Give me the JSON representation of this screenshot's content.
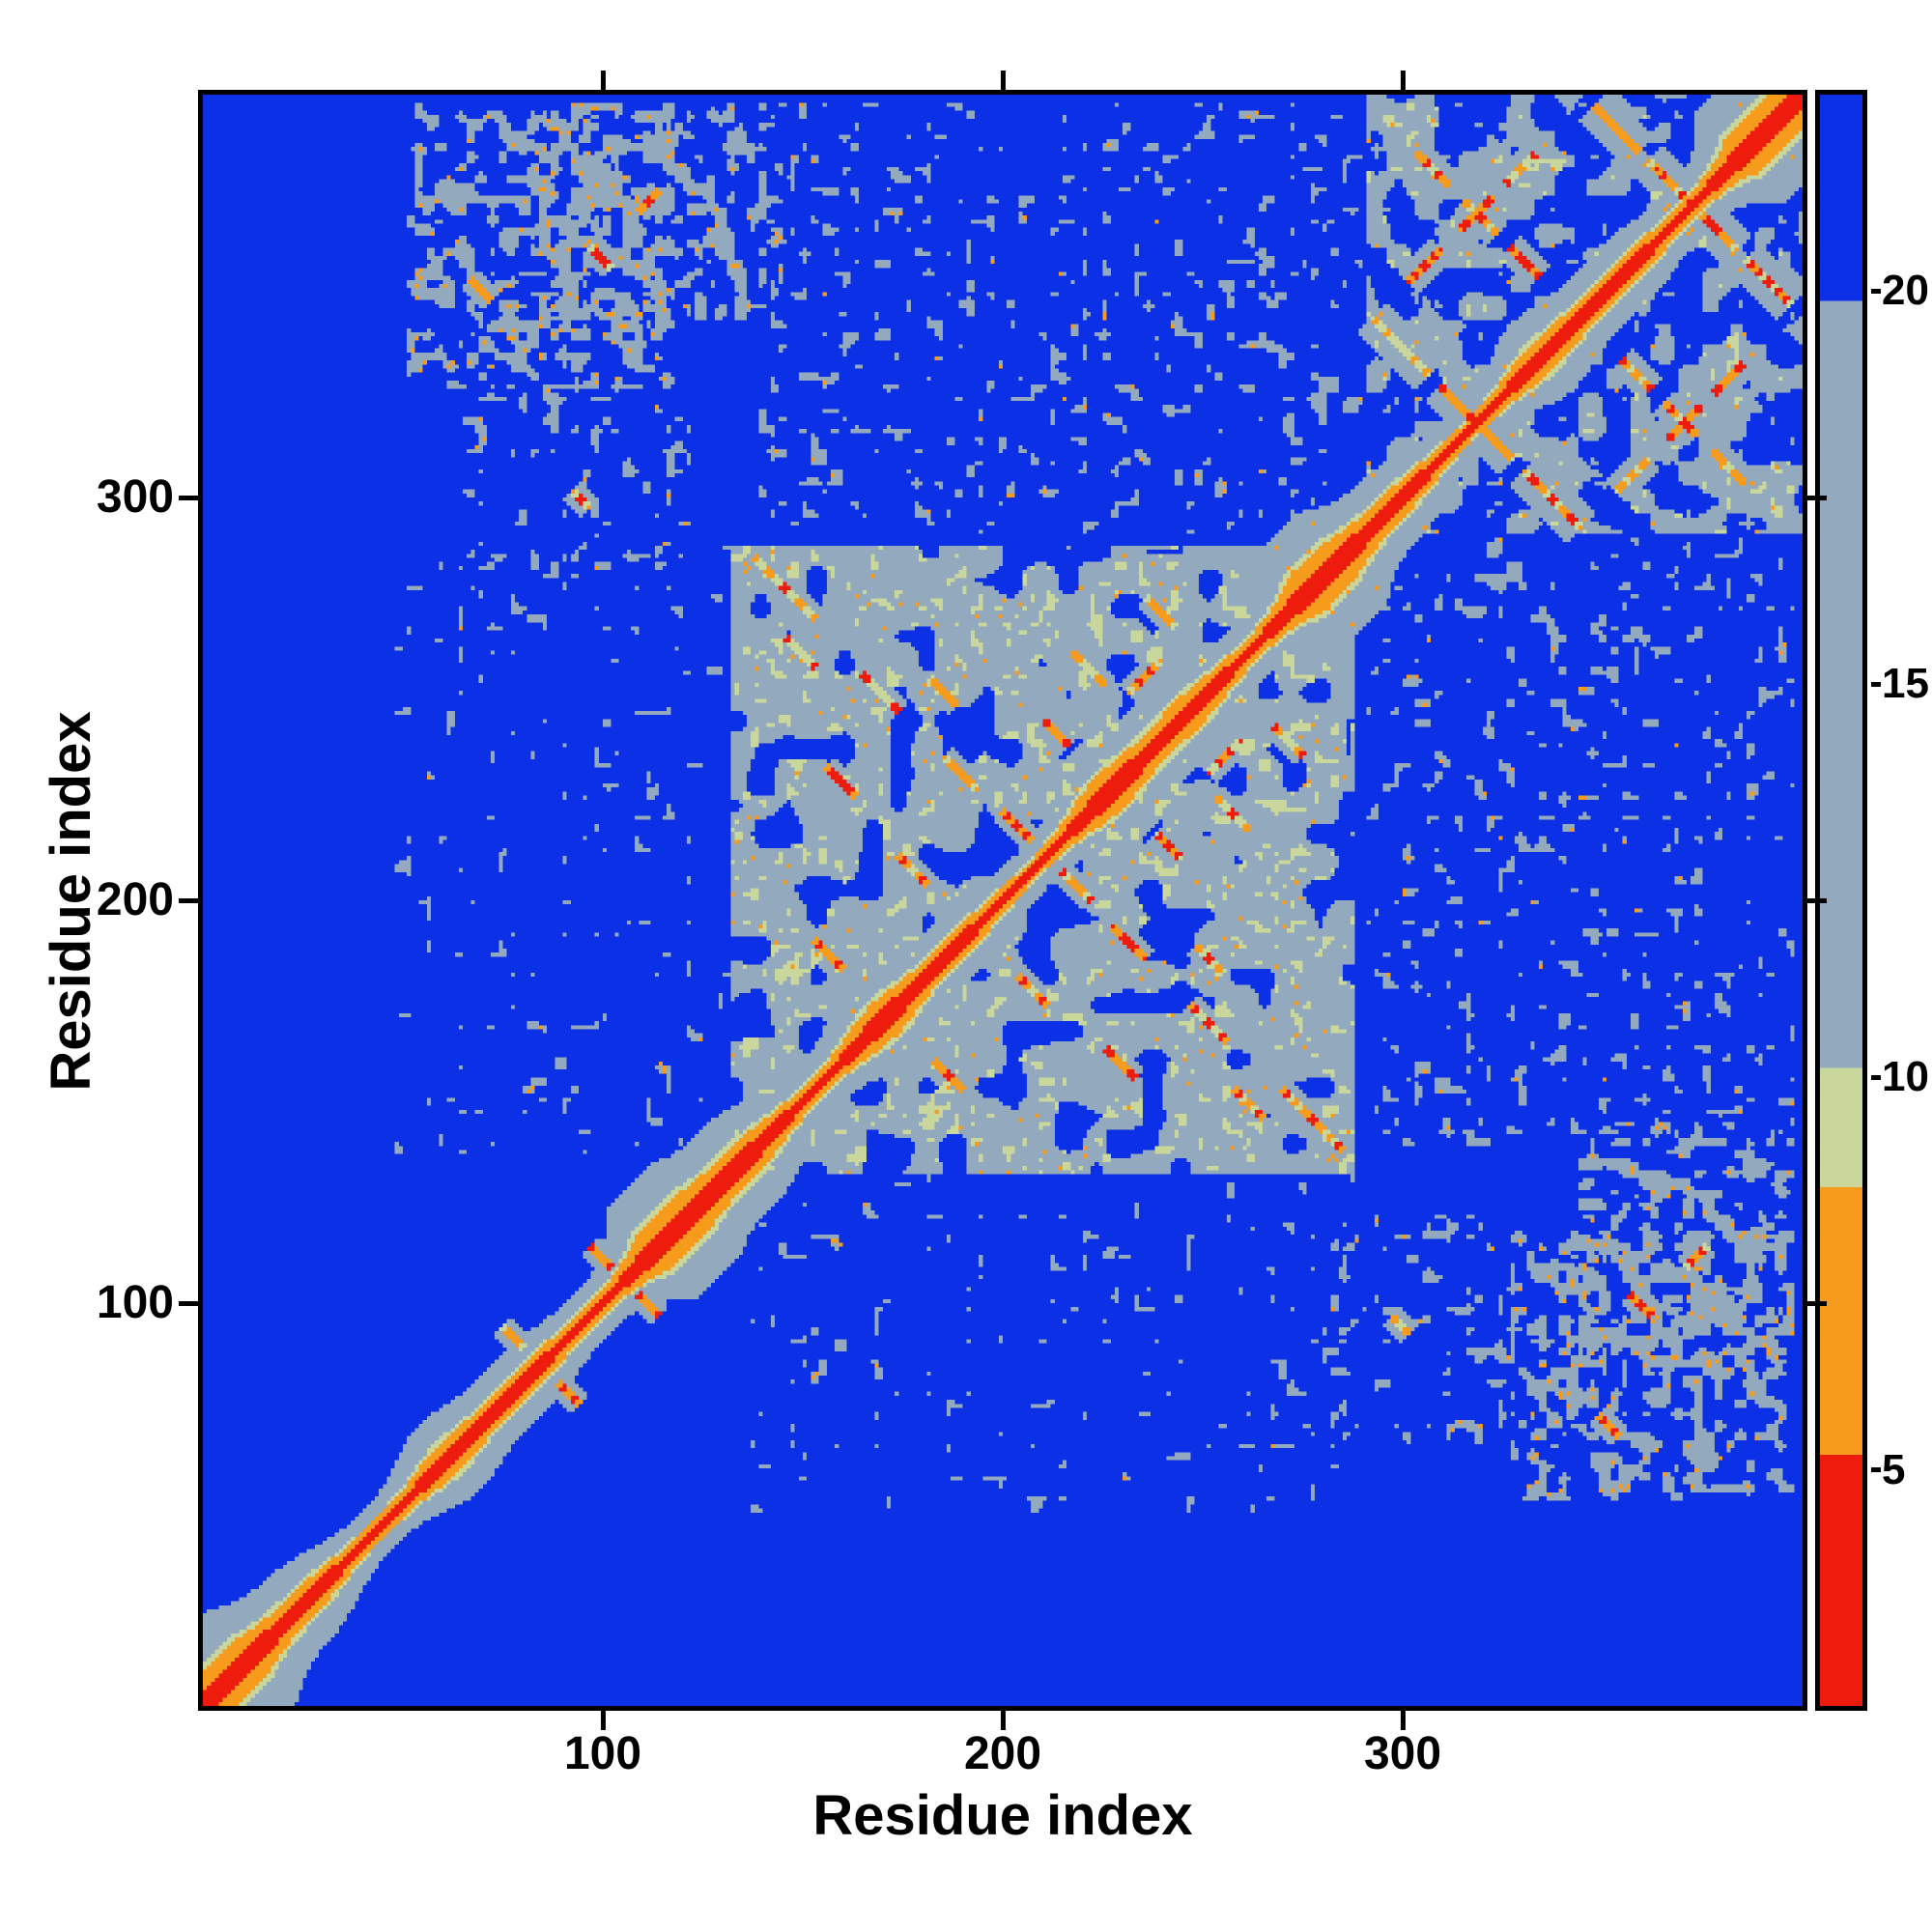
{
  "chart_data": {
    "type": "heatmap",
    "title": "",
    "xlabel": "Residue index",
    "ylabel": "Residue index",
    "axis_range": [
      0,
      400
    ],
    "n_residues": 400,
    "x_ticks": [
      100,
      200,
      300
    ],
    "y_ticks": [
      100,
      200,
      300
    ],
    "grid": false,
    "legend": "none",
    "description": "Symmetric residue-residue distance map: red diagonal = sequence-adjacent residues, orange/green = close contacts, slate-gray = intermediate distance, deep blue = far apart. Dense contact domain near residues 133-288 and an X-patterned C-terminal domain near residues 292-400.",
    "background_value": 22.2,
    "colorbar": {
      "position": "right",
      "vmin": 2,
      "vmax": 22.5,
      "ticks": [
        5,
        10,
        15,
        20
      ]
    },
    "colormap": [
      {
        "upto": 5.2,
        "color": "#ee1c0c"
      },
      {
        "upto": 8.6,
        "color": "#f79b1d"
      },
      {
        "upto": 10.1,
        "color": "#c9d69c"
      },
      {
        "upto": 19.9,
        "color": "#93a9be"
      },
      {
        "upto": 99,
        "color": "#0c30e6"
      }
    ],
    "diagonal": {
      "min": 2.1,
      "base": 1.35,
      "a1": 0.45,
      "f1": 0.115,
      "a2": 0.28,
      "f2": 0.047,
      "p2": 1.7,
      "a3": 0.22,
      "f3": 0.23,
      "p3": 0.5,
      "kmin": 0.8
    },
    "texture_regions": [
      {
        "name": "core-domain",
        "x": [
          133,
          288
        ],
        "y": [
          133,
          288
        ],
        "hole": 0.3,
        "base": 12,
        "spread": 7,
        "green": 0.8,
        "minsep": 8,
        "cscale": 7,
        "seed": 3
      },
      {
        "name": "cterm-domain",
        "x": [
          292,
          400
        ],
        "y": [
          292,
          400
        ],
        "hole": 0.52,
        "base": 12.5,
        "spread": 6.5,
        "green": 0.84,
        "minsep": 8,
        "cscale": 6,
        "seed": 9
      }
    ],
    "speckle_regions": [
      {
        "x": [
          52,
          118
        ],
        "y": [
          328,
          398
        ],
        "density": 0.42,
        "orange": 0.06,
        "seed": 11
      },
      {
        "x": [
          85,
          145
        ],
        "y": [
          345,
          398
        ],
        "density": 0.38,
        "orange": 0.06,
        "seed": 37
      },
      {
        "x": [
          66,
          122
        ],
        "y": [
          283,
          348
        ],
        "density": 0.18,
        "orange": 0.03,
        "seed": 23
      },
      {
        "x": [
          140,
          290
        ],
        "y": [
          292,
          398
        ],
        "density": 0.2,
        "orange": 0.03,
        "seed": 51
      },
      {
        "x": [
          48,
          132
        ],
        "y": [
          138,
          288
        ],
        "density": 0.12,
        "orange": 0.02,
        "seed": 67
      },
      {
        "x": [
          292,
          398
        ],
        "y": [
          292,
          398
        ],
        "density": 0.15,
        "orange": 0.02,
        "seed": 81
      }
    ],
    "contact_segments": [
      {
        "x": 146,
        "y": 278,
        "len": 22,
        "orient": "anti"
      },
      {
        "x": 170,
        "y": 252,
        "len": 14,
        "orient": "anti"
      },
      {
        "x": 190,
        "y": 232,
        "len": 12,
        "orient": "anti"
      },
      {
        "x": 204,
        "y": 219,
        "len": 10,
        "orient": "anti"
      },
      {
        "x": 160,
        "y": 230,
        "len": 10,
        "orient": "anti"
      },
      {
        "x": 150,
        "y": 262,
        "len": 10,
        "orient": "anti"
      },
      {
        "x": 178,
        "y": 208,
        "len": 10,
        "orient": "anti"
      },
      {
        "x": 186,
        "y": 252,
        "len": 9,
        "orient": "anti"
      },
      {
        "x": 214,
        "y": 242,
        "len": 9,
        "orient": "anti"
      },
      {
        "x": 222,
        "y": 258,
        "len": 12,
        "orient": "anti"
      },
      {
        "x": 240,
        "y": 272,
        "len": 10,
        "orient": "anti"
      },
      {
        "x": 236,
        "y": 256,
        "len": 12,
        "orient": "para"
      },
      {
        "x": 157,
        "y": 187,
        "len": 10,
        "orient": "anti"
      },
      {
        "x": 78,
        "y": 92,
        "len": 8,
        "orient": "anti"
      },
      {
        "x": 100,
        "y": 112,
        "len": 8,
        "orient": "anti"
      },
      {
        "x": 70,
        "y": 352,
        "len": 8,
        "orient": "anti"
      },
      {
        "x": 100,
        "y": 360,
        "len": 8,
        "orient": "anti"
      },
      {
        "x": 112,
        "y": 374,
        "len": 8,
        "orient": "para"
      },
      {
        "x": 95,
        "y": 300,
        "len": 7,
        "orient": "anti"
      },
      {
        "x": 300,
        "y": 338,
        "len": 20,
        "orient": "anti",
        "halo": 5
      },
      {
        "x": 314,
        "y": 324,
        "len": 12,
        "orient": "anti",
        "halo": 5
      },
      {
        "x": 354,
        "y": 392,
        "len": 16,
        "orient": "anti",
        "halo": 5
      },
      {
        "x": 368,
        "y": 378,
        "len": 12,
        "orient": "anti",
        "halo": 5
      },
      {
        "x": 380,
        "y": 366,
        "len": 12,
        "orient": "anti",
        "halo": 5
      },
      {
        "x": 308,
        "y": 382,
        "len": 12,
        "orient": "anti",
        "halo": 4
      },
      {
        "x": 320,
        "y": 370,
        "len": 12,
        "orient": "anti",
        "halo": 4
      },
      {
        "x": 331,
        "y": 359,
        "len": 10,
        "orient": "anti",
        "halo": 4
      },
      {
        "x": 306,
        "y": 358,
        "len": 12,
        "orient": "para",
        "halo": 4
      },
      {
        "x": 319,
        "y": 371,
        "len": 12,
        "orient": "para",
        "halo": 4
      },
      {
        "x": 330,
        "y": 382,
        "len": 10,
        "orient": "para",
        "halo": 4
      }
    ]
  }
}
